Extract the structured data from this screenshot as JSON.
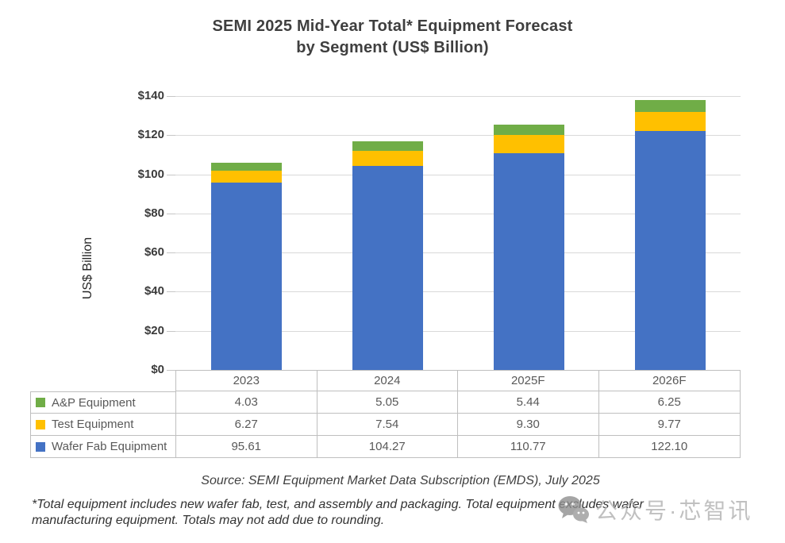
{
  "title": "SEMI 2025 Mid-Year Total* Equipment Forecast\nby Segment (US$ Billion)",
  "source_note": "Source: SEMI Equipment Market Data Subscription (EMDS), July 2025",
  "footnote": "*Total equipment includes new wafer fab, test, and assembly and packaging. Total equipment excludes wafer\nmanufacturing equipment. Totals may not add due to rounding.",
  "watermark": {
    "text": "公众号·芯智讯",
    "icon": "wechat-chat-bubbles-icon"
  },
  "colors": {
    "wafer_fab_blue": "#4472C4",
    "test_yellow": "#FFC000",
    "ap_green": "#70AD47",
    "gridline_gray": "#D9D9D9",
    "table_border_gray": "#BFBFBF"
  },
  "chart_data": {
    "type": "bar",
    "stacked": true,
    "title": "SEMI 2025 Mid-Year Total* Equipment Forecast by Segment (US$ Billion)",
    "xlabel": "",
    "ylabel": "US$ Billion",
    "categories": [
      "2023",
      "2024",
      "2025F",
      "2026F"
    ],
    "series": [
      {
        "name": "Wafer Fab Equipment",
        "color": "#4472C4",
        "values": [
          95.61,
          104.27,
          110.77,
          122.1
        ]
      },
      {
        "name": "Test Equipment",
        "color": "#FFC000",
        "values": [
          6.27,
          7.54,
          9.3,
          9.77
        ]
      },
      {
        "name": "A&P Equipment",
        "color": "#70AD47",
        "values": [
          4.03,
          5.05,
          5.44,
          6.25
        ]
      }
    ],
    "ylim": [
      0,
      140
    ],
    "ytick_step": 20,
    "ytick_prefix": "$",
    "grid": true,
    "legend_position": "table-left"
  },
  "table": {
    "columns": [
      "2023",
      "2024",
      "2025F",
      "2026F"
    ],
    "rows": [
      {
        "label": "A&P Equipment",
        "swatch": "#70AD47",
        "values": [
          "4.03",
          "5.05",
          "5.44",
          "6.25"
        ]
      },
      {
        "label": "Test Equipment",
        "swatch": "#FFC000",
        "values": [
          "6.27",
          "7.54",
          "9.30",
          "9.77"
        ]
      },
      {
        "label": "Wafer Fab Equipment",
        "swatch": "#4472C4",
        "values": [
          "95.61",
          "104.27",
          "110.77",
          "122.10"
        ]
      }
    ]
  }
}
